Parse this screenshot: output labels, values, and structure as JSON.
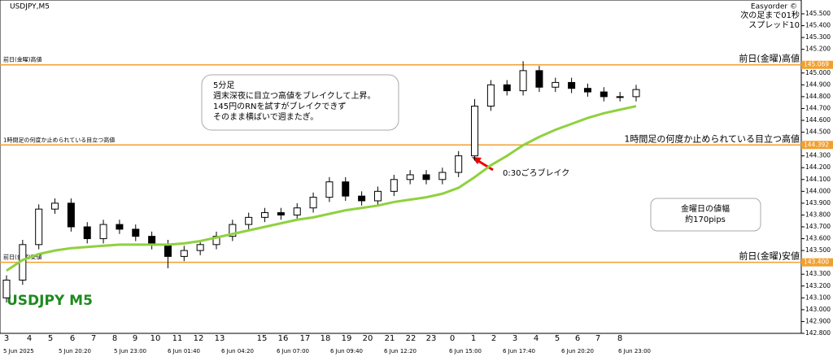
{
  "header": {
    "symbol": "USDJPY,M5",
    "tool": "Easyorder ©",
    "countdown": "次の足まで01秒",
    "spread": "スプレッド10",
    "watermark": "USDJPY M5"
  },
  "chart_data": {
    "type": "candlestick",
    "open": [
      143.1,
      143.25,
      143.55,
      143.85,
      143.9,
      143.7,
      143.6,
      143.72,
      143.68,
      143.62,
      143.55,
      143.45,
      143.5,
      143.55,
      143.62,
      143.72,
      143.78,
      143.82,
      143.8,
      143.86,
      143.95,
      144.08,
      143.96,
      143.92,
      144.0,
      144.1,
      144.14,
      144.1,
      144.16,
      144.3,
      144.72,
      144.9,
      144.85,
      145.02,
      144.88,
      144.92,
      144.87,
      144.84,
      144.8,
      144.8
    ],
    "high": [
      143.29,
      143.59,
      143.89,
      143.94,
      143.94,
      143.74,
      143.76,
      143.76,
      143.72,
      143.66,
      143.59,
      143.54,
      143.59,
      143.66,
      143.76,
      143.82,
      143.86,
      143.86,
      143.9,
      143.99,
      144.12,
      144.12,
      144.0,
      144.04,
      144.14,
      144.18,
      144.18,
      144.2,
      144.34,
      144.78,
      144.94,
      144.94,
      145.1,
      145.06,
      144.96,
      144.96,
      144.91,
      144.88,
      144.84,
      144.9
    ],
    "low": [
      143.06,
      143.21,
      143.51,
      143.81,
      143.66,
      143.56,
      143.56,
      143.64,
      143.58,
      143.51,
      143.35,
      143.41,
      143.46,
      143.51,
      143.58,
      143.68,
      143.74,
      143.76,
      143.76,
      143.82,
      143.91,
      143.92,
      143.88,
      143.88,
      143.96,
      144.06,
      144.06,
      144.06,
      144.12,
      144.26,
      144.68,
      144.81,
      144.81,
      144.84,
      144.84,
      144.83,
      144.8,
      144.76,
      144.76,
      144.76
    ],
    "close": [
      143.25,
      143.55,
      143.85,
      143.9,
      143.7,
      143.6,
      143.72,
      143.68,
      143.62,
      143.55,
      143.45,
      143.5,
      143.55,
      143.62,
      143.72,
      143.78,
      143.82,
      143.8,
      143.86,
      143.95,
      144.08,
      143.96,
      143.92,
      144.0,
      144.1,
      144.14,
      144.1,
      144.16,
      144.3,
      144.72,
      144.9,
      144.85,
      145.02,
      144.88,
      144.92,
      144.87,
      144.84,
      144.8,
      144.8,
      144.86
    ],
    "ma": {
      "color": "#8fd13f",
      "values": [
        143.33,
        143.42,
        143.47,
        143.5,
        143.52,
        143.53,
        143.54,
        143.55,
        143.55,
        143.55,
        143.55,
        143.56,
        143.58,
        143.61,
        143.64,
        143.67,
        143.7,
        143.73,
        143.76,
        143.78,
        143.81,
        143.84,
        143.86,
        143.88,
        143.91,
        143.93,
        143.95,
        143.98,
        144.03,
        144.12,
        144.22,
        144.3,
        144.39,
        144.46,
        144.52,
        144.57,
        144.62,
        144.66,
        144.69,
        144.72
      ]
    },
    "ylim": [
      142.8,
      145.5
    ],
    "yticks": [
      {
        "value": 145.5,
        "label": "145.500"
      },
      {
        "value": 145.4,
        "label": "145.400"
      },
      {
        "value": 145.3,
        "label": "145.300"
      },
      {
        "value": 145.2,
        "label": "145.200"
      },
      {
        "value": 145.0,
        "label": "145.000"
      },
      {
        "value": 144.9,
        "label": "144.900"
      },
      {
        "value": 144.8,
        "label": "144.800"
      },
      {
        "value": 144.7,
        "label": "144.700"
      },
      {
        "value": 144.6,
        "label": "144.600"
      },
      {
        "value": 144.5,
        "label": "144.500"
      },
      {
        "value": 144.3,
        "label": "144.300"
      },
      {
        "value": 144.2,
        "label": "144.200"
      },
      {
        "value": 144.1,
        "label": "144.100"
      },
      {
        "value": 144.0,
        "label": "144.000"
      },
      {
        "value": 143.9,
        "label": "143.900"
      },
      {
        "value": 143.8,
        "label": "143.800"
      },
      {
        "value": 143.7,
        "label": "143.700"
      },
      {
        "value": 143.6,
        "label": "143.600"
      },
      {
        "value": 143.5,
        "label": "143.500"
      },
      {
        "value": 143.3,
        "label": "143.300"
      },
      {
        "value": 143.2,
        "label": "143.200"
      },
      {
        "value": 143.1,
        "label": "143.100"
      },
      {
        "value": 143.0,
        "label": "143.000"
      },
      {
        "value": 142.9,
        "label": "142.900"
      },
      {
        "value": 142.8,
        "label": "142.800"
      }
    ],
    "levels": [
      {
        "value": 145.069,
        "label": "145.069",
        "left_text": "前日(金曜)高値",
        "right_text": "前日(金曜)高値"
      },
      {
        "value": 144.392,
        "label": "144.392",
        "left_text": "1時間足の何度か止められている目立つ高値",
        "right_text": "1時間足の何度か止められている目立つ高値"
      },
      {
        "value": 143.4,
        "label": "143.400",
        "left_text": "前日(金曜)安値",
        "right_text": "前日(金曜)安値"
      }
    ],
    "hour_labels": [
      "3",
      "4",
      "5",
      "6",
      "7",
      "8",
      "9",
      "10",
      "11",
      "12",
      "13",
      "15",
      "16",
      "17",
      "18",
      "19",
      "20",
      "21",
      "22",
      "23",
      "0",
      "1",
      "2",
      "3",
      "4",
      "5",
      "6",
      "7",
      "8"
    ],
    "date_labels": [
      "5 Jun 2025",
      "5 Jun 20:20",
      "5 Jun 23:00",
      "6 Jun 01:40",
      "6 Jun 04:20",
      "6 Jun 07:00",
      "6 Jun 09:40",
      "6 Jun 12:20",
      "6 Jun 15:00",
      "6 Jun 17:40",
      "6 Jun 20:20",
      "6 Jun 23:00"
    ]
  },
  "annotations": {
    "note_lines": [
      "5分足",
      "週末深夜に目立つ高値をブレイクして上昇。",
      "145円のRNを試すがブレイクできず",
      "そのまま横ばいで週またぎ。"
    ],
    "break": "0:30ごろブレイク",
    "range_lines": [
      "金曜日の値幅",
      "約170pips"
    ]
  }
}
